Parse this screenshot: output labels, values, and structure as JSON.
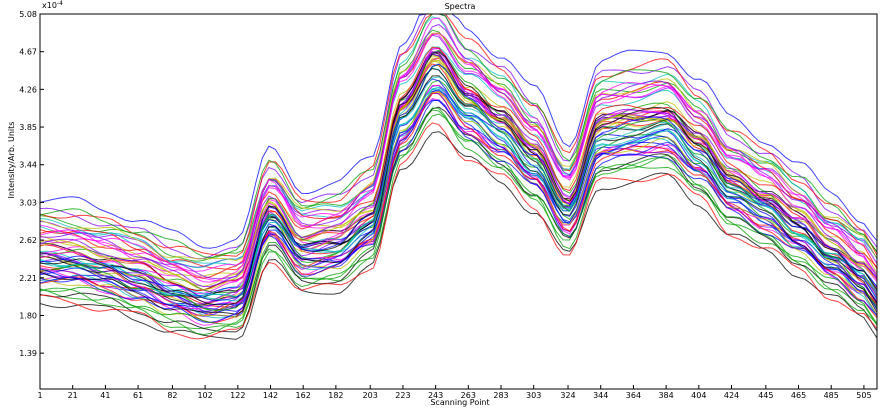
{
  "chart_data": {
    "type": "line",
    "title": "Spectra",
    "xlabel": "Scanning Point",
    "ylabel": "Intensity/Arb. Units",
    "y_exponent_label": "x10",
    "y_exponent_power": "-4",
    "xlim": [
      1,
      513
    ],
    "ylim": [
      1.0,
      5.08
    ],
    "x_ticks": [
      1,
      21,
      41,
      61,
      82,
      102,
      122,
      142,
      162,
      182,
      203,
      223,
      243,
      263,
      283,
      303,
      324,
      344,
      364,
      384,
      404,
      424,
      445,
      465,
      485,
      505
    ],
    "x_tick_labels": [
      "1",
      "21",
      "41",
      "61",
      "82",
      "102",
      "122",
      "142",
      "162",
      "182",
      "203",
      "223",
      "243",
      "263",
      "283",
      "303",
      "324",
      "344",
      "364",
      "384",
      "404",
      "424",
      "445",
      "465",
      "485",
      "505"
    ],
    "y_ticks": [
      1.39,
      1.8,
      2.21,
      2.62,
      3.03,
      3.44,
      3.85,
      4.26,
      4.67,
      5.08
    ],
    "y_tick_labels": [
      "1.39",
      "1.80",
      "2.21",
      "2.62",
      "3.03",
      "3.44",
      "3.85",
      "4.26",
      "4.67",
      "5.08"
    ],
    "grid": false,
    "legend": "none",
    "colors": [
      "#ff00ff",
      "#0000ff",
      "#ff0000",
      "#00a000",
      "#00bfbf",
      "#bfbf00",
      "#000000",
      "#8000ff"
    ],
    "series_count": 60,
    "reference_profile": {
      "x": [
        1,
        21,
        41,
        61,
        82,
        102,
        122,
        142,
        162,
        182,
        203,
        223,
        243,
        263,
        283,
        303,
        324,
        344,
        364,
        384,
        404,
        424,
        445,
        465,
        485,
        505,
        513
      ],
      "y": [
        2.5,
        2.48,
        2.4,
        2.3,
        2.15,
        2.05,
        2.1,
        3.0,
        2.6,
        2.65,
        2.9,
        4.1,
        4.6,
        4.2,
        3.95,
        3.6,
        3.05,
        3.9,
        3.95,
        4.0,
        3.7,
        3.3,
        3.1,
        2.85,
        2.55,
        2.3,
        2.1
      ]
    }
  }
}
